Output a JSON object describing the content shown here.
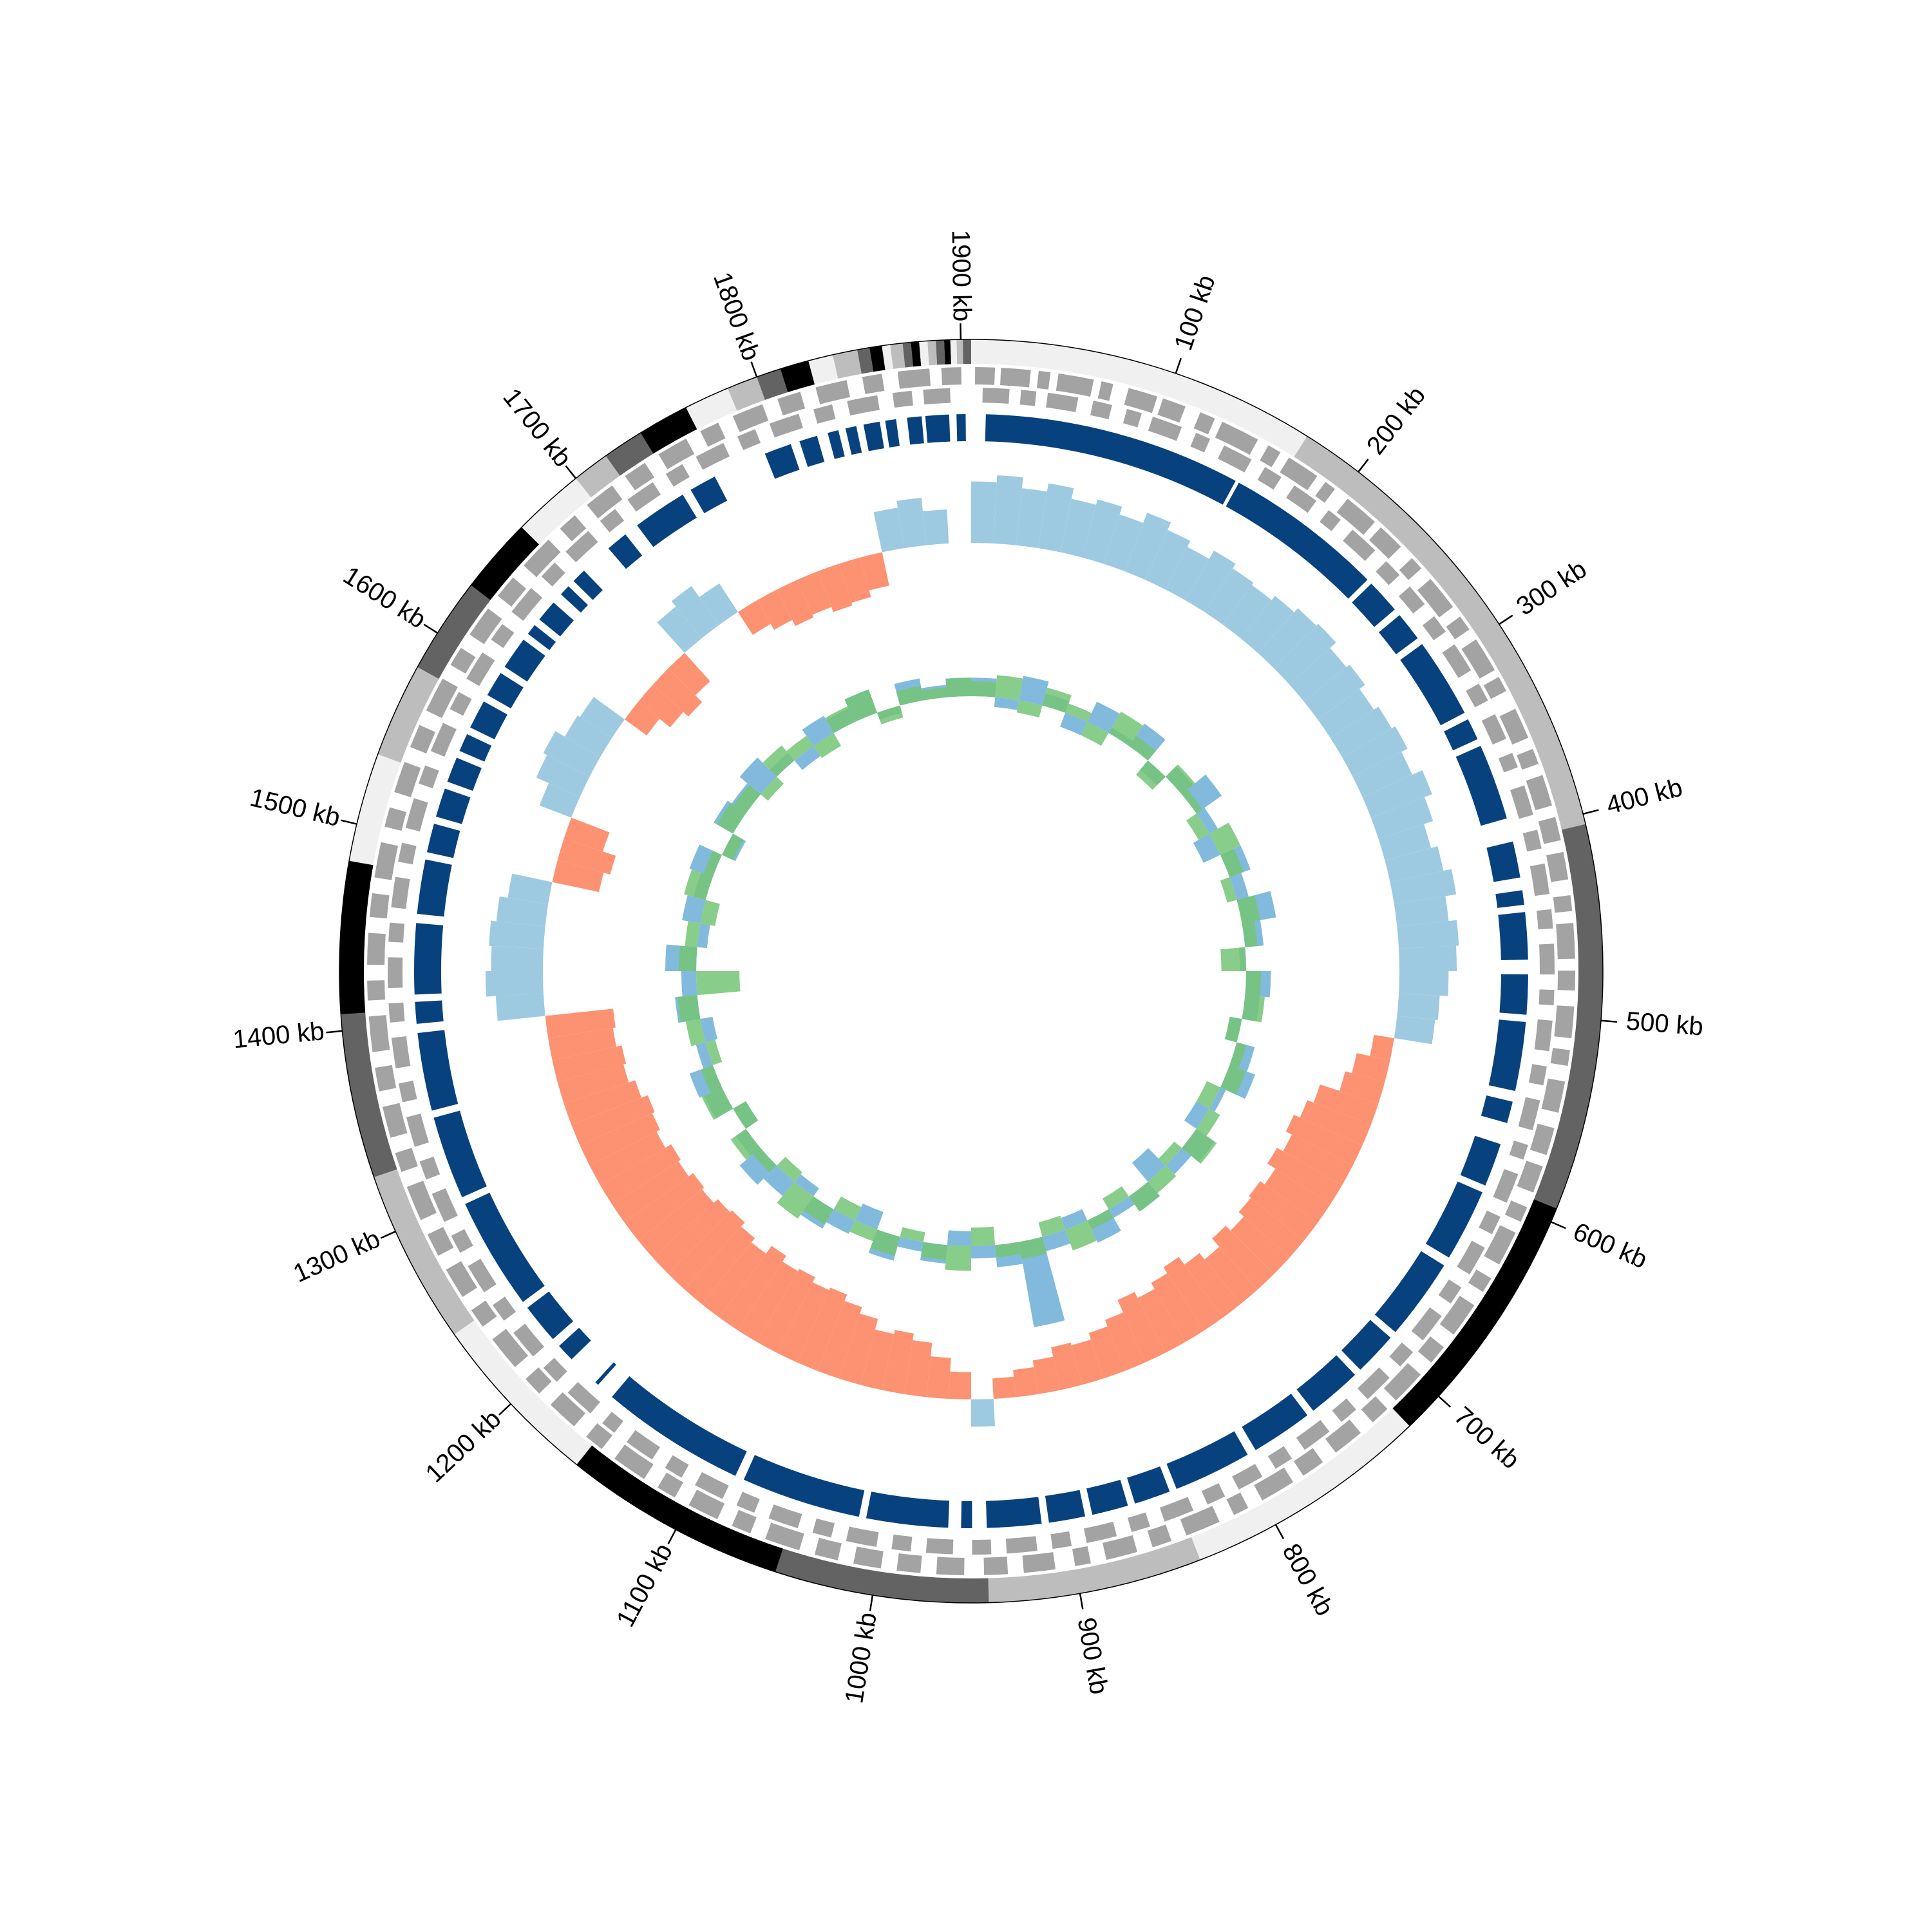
{
  "chart_data": {
    "type": "circular-genome",
    "xlim": [
      0,
      1905
    ],
    "xticks": [
      {
        "value": 100,
        "label": "100 kb"
      },
      {
        "value": 200,
        "label": "200 kb"
      },
      {
        "value": 300,
        "label": "300 kb"
      },
      {
        "value": 400,
        "label": "400 kb"
      },
      {
        "value": 500,
        "label": "500 kb"
      },
      {
        "value": 600,
        "label": "600 kb"
      },
      {
        "value": 700,
        "label": "700 kb"
      },
      {
        "value": 800,
        "label": "800 kb"
      },
      {
        "value": 900,
        "label": "900 kb"
      },
      {
        "value": 1000,
        "label": "1000 kb"
      },
      {
        "value": 1100,
        "label": "1100 kb"
      },
      {
        "value": 1200,
        "label": "1200 kb"
      },
      {
        "value": 1300,
        "label": "1300 kb"
      },
      {
        "value": 1400,
        "label": "1400 kb"
      },
      {
        "value": 1500,
        "label": "1500 kb"
      },
      {
        "value": 1600,
        "label": "1600 kb"
      },
      {
        "value": 1700,
        "label": "1700 kb"
      },
      {
        "value": 1800,
        "label": "1800 kb"
      },
      {
        "value": 1900,
        "label": "1900 kb"
      }
    ],
    "contigs": {
      "colors": [
        "#f0f0f0",
        "#bdbdbd",
        "#636363",
        "#000000"
      ],
      "bounds": [
        0,
        170,
        405,
        593,
        720,
        840,
        944,
        1048,
        1157,
        1243,
        1328,
        1408,
        1482,
        1535,
        1581,
        1628,
        1665,
        1700,
        1718,
        1738,
        1763,
        1785,
        1800,
        1812,
        1826,
        1838,
        1850,
        1856,
        1862,
        1866,
        1872,
        1876,
        1880,
        1884,
        1888,
        1892,
        1895,
        1898,
        1901,
        1905
      ]
    },
    "genes_forward": {
      "color": "#a3a3a3",
      "spans": [
        [
          2,
          12
        ],
        [
          15,
          30
        ],
        [
          34,
          40
        ],
        [
          44,
          62
        ],
        [
          66,
          72
        ],
        [
          80,
          95
        ],
        [
          98,
          110
        ],
        [
          118,
          126
        ],
        [
          130,
          150
        ],
        [
          156,
          163
        ],
        [
          168,
          185
        ],
        [
          190,
          196
        ],
        [
          204,
          222
        ],
        [
          226,
          240
        ],
        [
          248,
          255
        ],
        [
          262,
          280
        ],
        [
          286,
          294
        ],
        [
          300,
          318
        ],
        [
          322,
          330
        ],
        [
          340,
          356
        ],
        [
          362,
          370
        ],
        [
          376,
          392
        ],
        [
          398,
          410
        ],
        [
          416,
          430
        ],
        [
          438,
          446
        ],
        [
          452,
          470
        ],
        [
          476,
          486
        ],
        [
          494,
          510
        ],
        [
          516,
          524
        ],
        [
          532,
          548
        ],
        [
          556,
          570
        ],
        [
          576,
          590
        ],
        [
          598,
          606
        ],
        [
          612,
          630
        ],
        [
          638,
          646
        ],
        [
          654,
          672
        ],
        [
          680,
          690
        ],
        [
          698,
          716
        ],
        [
          722,
          732
        ],
        [
          740,
          756
        ],
        [
          764,
          776
        ],
        [
          782,
          800
        ],
        [
          808,
          816
        ],
        [
          824,
          842
        ],
        [
          850,
          860
        ],
        [
          868,
          884
        ],
        [
          892,
          900
        ],
        [
          910,
          926
        ],
        [
          934,
          946
        ],
        [
          956,
          970
        ],
        [
          978,
          990
        ],
        [
          998,
          1012
        ],
        [
          1020,
          1032
        ],
        [
          1040,
          1058
        ],
        [
          1066,
          1076
        ],
        [
          1084,
          1100
        ],
        [
          1108,
          1118
        ],
        [
          1126,
          1144
        ],
        [
          1152,
          1162
        ],
        [
          1170,
          1186
        ],
        [
          1194,
          1204
        ],
        [
          1212,
          1230
        ],
        [
          1238,
          1248
        ],
        [
          1256,
          1272
        ],
        [
          1280,
          1292
        ],
        [
          1300,
          1318
        ],
        [
          1326,
          1336
        ],
        [
          1344,
          1360
        ],
        [
          1368,
          1380
        ],
        [
          1388,
          1406
        ],
        [
          1414,
          1424
        ],
        [
          1432,
          1448
        ],
        [
          1456,
          1468
        ],
        [
          1476,
          1494
        ],
        [
          1502,
          1512
        ],
        [
          1520,
          1536
        ],
        [
          1544,
          1556
        ],
        [
          1564,
          1582
        ],
        [
          1590,
          1600
        ],
        [
          1608,
          1624
        ],
        [
          1632,
          1644
        ],
        [
          1652,
          1670
        ],
        [
          1678,
          1688
        ],
        [
          1696,
          1712
        ],
        [
          1720,
          1732
        ],
        [
          1740,
          1756
        ],
        [
          1764,
          1774
        ],
        [
          1782,
          1798
        ],
        [
          1806,
          1818
        ],
        [
          1826,
          1842
        ],
        [
          1850,
          1860
        ],
        [
          1868,
          1884
        ],
        [
          1890,
          1900
        ]
      ]
    },
    "genes_reverse": {
      "color": "#a3a3a3",
      "spans": [
        [
          6,
          20
        ],
        [
          26,
          34
        ],
        [
          40,
          56
        ],
        [
          64,
          74
        ],
        [
          82,
          90
        ],
        [
          96,
          112
        ],
        [
          120,
          128
        ],
        [
          136,
          152
        ],
        [
          160,
          170
        ],
        [
          178,
          192
        ],
        [
          200,
          208
        ],
        [
          216,
          232
        ],
        [
          240,
          250
        ],
        [
          258,
          270
        ],
        [
          278,
          288
        ],
        [
          296,
          312
        ],
        [
          320,
          330
        ],
        [
          338,
          352
        ],
        [
          360,
          368
        ],
        [
          378,
          394
        ],
        [
          402,
          412
        ],
        [
          420,
          436
        ],
        [
          444,
          454
        ],
        [
          462,
          478
        ],
        [
          486,
          494
        ],
        [
          502,
          518
        ],
        [
          526,
          536
        ],
        [
          544,
          560
        ],
        [
          568,
          576
        ],
        [
          584,
          600
        ],
        [
          608,
          618
        ],
        [
          626,
          642
        ],
        [
          650,
          660
        ],
        [
          668,
          684
        ],
        [
          692,
          702
        ],
        [
          710,
          726
        ],
        [
          734,
          744
        ],
        [
          752,
          768
        ],
        [
          776,
          786
        ],
        [
          794,
          808
        ],
        [
          816,
          826
        ],
        [
          834,
          850
        ],
        [
          858,
          868
        ],
        [
          876,
          892
        ],
        [
          900,
          910
        ],
        [
          918,
          934
        ],
        [
          942,
          952
        ],
        [
          962,
          976
        ],
        [
          984,
          994
        ],
        [
          1002,
          1018
        ],
        [
          1026,
          1036
        ],
        [
          1044,
          1060
        ],
        [
          1068,
          1078
        ],
        [
          1086,
          1102
        ],
        [
          1110,
          1120
        ],
        [
          1128,
          1144
        ],
        [
          1152,
          1160
        ],
        [
          1168,
          1184
        ],
        [
          1192,
          1202
        ],
        [
          1210,
          1226
        ],
        [
          1234,
          1244
        ],
        [
          1252,
          1268
        ],
        [
          1276,
          1286
        ],
        [
          1294,
          1310
        ],
        [
          1318,
          1328
        ],
        [
          1336,
          1352
        ],
        [
          1360,
          1370
        ],
        [
          1378,
          1394
        ],
        [
          1402,
          1412
        ],
        [
          1420,
          1436
        ],
        [
          1444,
          1454
        ],
        [
          1462,
          1478
        ],
        [
          1486,
          1496
        ],
        [
          1504,
          1520
        ],
        [
          1528,
          1538
        ],
        [
          1546,
          1562
        ],
        [
          1570,
          1580
        ],
        [
          1588,
          1604
        ],
        [
          1612,
          1622
        ],
        [
          1630,
          1646
        ],
        [
          1654,
          1664
        ],
        [
          1672,
          1688
        ],
        [
          1696,
          1706
        ],
        [
          1714,
          1730
        ],
        [
          1738,
          1748
        ],
        [
          1756,
          1772
        ],
        [
          1780,
          1790
        ],
        [
          1798,
          1814
        ],
        [
          1822,
          1832
        ],
        [
          1840,
          1856
        ],
        [
          1864,
          1874
        ],
        [
          1880,
          1894
        ]
      ]
    },
    "blocks": {
      "color": "#08427e",
      "spans": [
        [
          8,
          150
        ],
        [
          152,
          240
        ],
        [
          243,
          262
        ],
        [
          266,
          282
        ],
        [
          286,
          330
        ],
        [
          334,
          346
        ],
        [
          350,
          392
        ],
        [
          405,
          425
        ],
        [
          432,
          440
        ],
        [
          444,
          470
        ],
        [
          478,
          500
        ],
        [
          504,
          542
        ],
        [
          548,
          560
        ],
        [
          572,
          596
        ],
        [
          600,
          640
        ],
        [
          645,
          690
        ],
        [
          694,
          718
        ],
        [
          722,
          752
        ],
        [
          756,
          790
        ],
        [
          795,
          838
        ],
        [
          842,
          862
        ],
        [
          866,
          886
        ],
        [
          890,
          910
        ],
        [
          914,
          944
        ],
        [
          952,
          958
        ],
        [
          965,
          1010
        ],
        [
          1014,
          1080
        ],
        [
          1085,
          1165
        ],
        [
          1175,
          1177
        ],
        [
          1195,
          1205
        ],
        [
          1210,
          1232
        ],
        [
          1236,
          1298
        ],
        [
          1302,
          1348
        ],
        [
          1352,
          1395
        ],
        [
          1400,
          1412
        ],
        [
          1416,
          1455
        ],
        [
          1460,
          1490
        ],
        [
          1494,
          1510
        ],
        [
          1514,
          1530
        ],
        [
          1534,
          1548
        ],
        [
          1552,
          1562
        ],
        [
          1566,
          1582
        ],
        [
          1586,
          1600
        ],
        [
          1604,
          1622
        ],
        [
          1626,
          1632
        ],
        [
          1636,
          1648
        ],
        [
          1654,
          1660
        ],
        [
          1664,
          1672
        ],
        [
          1690,
          1702
        ],
        [
          1710,
          1740
        ],
        [
          1745,
          1760
        ],
        [
          1790,
          1805
        ],
        [
          1810,
          1820
        ],
        [
          1826,
          1832
        ],
        [
          1836,
          1842
        ],
        [
          1846,
          1855
        ],
        [
          1858,
          1864
        ],
        [
          1870,
          1878
        ],
        [
          1880,
          1893
        ],
        [
          1897,
          1902
        ]
      ]
    },
    "skew": {
      "colors": {
        "positive": "#9ecae1",
        "negative": "#fc9272"
      },
      "values": [
        0.45,
        0.5,
        0.42,
        0.48,
        0.4,
        0.44,
        0.38,
        0.46,
        0.4,
        0.35,
        0.42,
        0.38,
        0.36,
        0.4,
        0.44,
        0.46,
        0.4,
        0.43,
        0.38,
        0.42,
        0.45,
        0.4,
        0.48,
        0.42,
        0.35,
        0.4,
        0.46,
        0.38,
        0.44,
        0.42,
        0.36,
        0.3,
        0.28,
        -0.15,
        -0.25,
        -0.3,
        -0.45,
        -0.5,
        -0.55,
        -0.5,
        -0.55,
        -0.48,
        -0.52,
        -0.5,
        -0.45,
        -0.5,
        -0.42,
        -0.48,
        -0.55,
        -0.5,
        -0.45,
        -0.5,
        -0.4,
        -0.35,
        -0.3,
        -0.32,
        -0.25,
        -0.2,
        -0.15,
        0.2,
        -0.2,
        -0.3,
        -0.4,
        -0.45,
        -0.42,
        -0.5,
        -0.55,
        -0.6,
        -0.58,
        -0.62,
        -0.6,
        -0.65,
        -0.58,
        -0.62,
        -0.66,
        -0.64,
        -0.6,
        -0.62,
        -0.58,
        -0.6,
        -0.55,
        -0.58,
        -0.6,
        -0.55,
        -0.5,
        -0.52,
        -0.48,
        -0.5,
        0.35,
        0.42,
        0.38,
        0.4,
        0.36,
        0.3,
        -0.35,
        -0.4,
        -0.3,
        0.25,
        0.35,
        0.38,
        0.3,
        0.28,
        -0.2,
        -0.3,
        -0.35,
        -0.28,
        0.3,
        0.35,
        0.25,
        -0.2,
        -0.25,
        -0.3,
        -0.28,
        -0.32,
        -0.3,
        -0.25,
        0.3,
        0.35,
        0.25,
        null
      ]
    },
    "series": [
      {
        "color": "#6baed6",
        "values": [
          0.15,
          -0.08,
          0.2,
          0.1,
          -0.12,
          0.18,
          0.05,
          0.22,
          -0.1,
          0.12,
          0.25,
          0.08,
          -0.15,
          0.18,
          0.1,
          0.28,
          0.15,
          -0.05,
          0.2,
          0.12,
          -0.1,
          0.15,
          0.22,
          0.05,
          -0.12,
          0.18,
          0.1,
          -0.2,
          0.15,
          0.08,
          0.2,
          -0.1,
          0.12,
          0.7,
          0.18,
          0.1,
          -0.12,
          0.15,
          0.08,
          0.2,
          -0.15,
          0.12,
          0.18,
          -0.08,
          0.15,
          0.22,
          0.1,
          -0.12,
          0.16,
          0.2,
          0.08,
          -0.1,
          0.18,
          0.12,
          0.25,
          -0.08,
          0.15,
          0.1,
          0.2,
          -0.12,
          0.18,
          0.14,
          0.22,
          0.08,
          -0.1,
          0.16,
          0.12,
          0.2,
          -0.06,
          0.18,
          0.1,
          0.15
        ]
      },
      {
        "color": "#74c476",
        "values": [
          0.12,
          0.18,
          -0.1,
          0.15,
          0.08,
          -0.12,
          0.2,
          0.1,
          -0.15,
          0.14,
          0.06,
          -0.1,
          0.18,
          0.12,
          -0.08,
          0.15,
          0.1,
          -0.2,
          0.12,
          0.16,
          -0.1,
          0.08,
          0.14,
          -0.12,
          0.1,
          0.2,
          -0.08,
          0.12,
          0.15,
          -0.1,
          0.08,
          0.18,
          -0.12,
          0.14,
          0.1,
          -0.15,
          0.2,
          0.12,
          -0.08,
          0.16,
          0.1,
          -0.12,
          0.14,
          0.22,
          -0.1,
          0.08,
          0.15,
          -0.12,
          0.18,
          0.1,
          -0.08,
          0.12,
          0.16,
          -0.35,
          0.14,
          0.1,
          -0.12,
          0.18,
          0.08,
          -0.1,
          0.15,
          0.12,
          -0.08,
          0.16,
          0.1,
          -0.12,
          0.14,
          0.2,
          -0.1,
          0.12,
          0.08,
          0.15
        ]
      }
    ]
  }
}
